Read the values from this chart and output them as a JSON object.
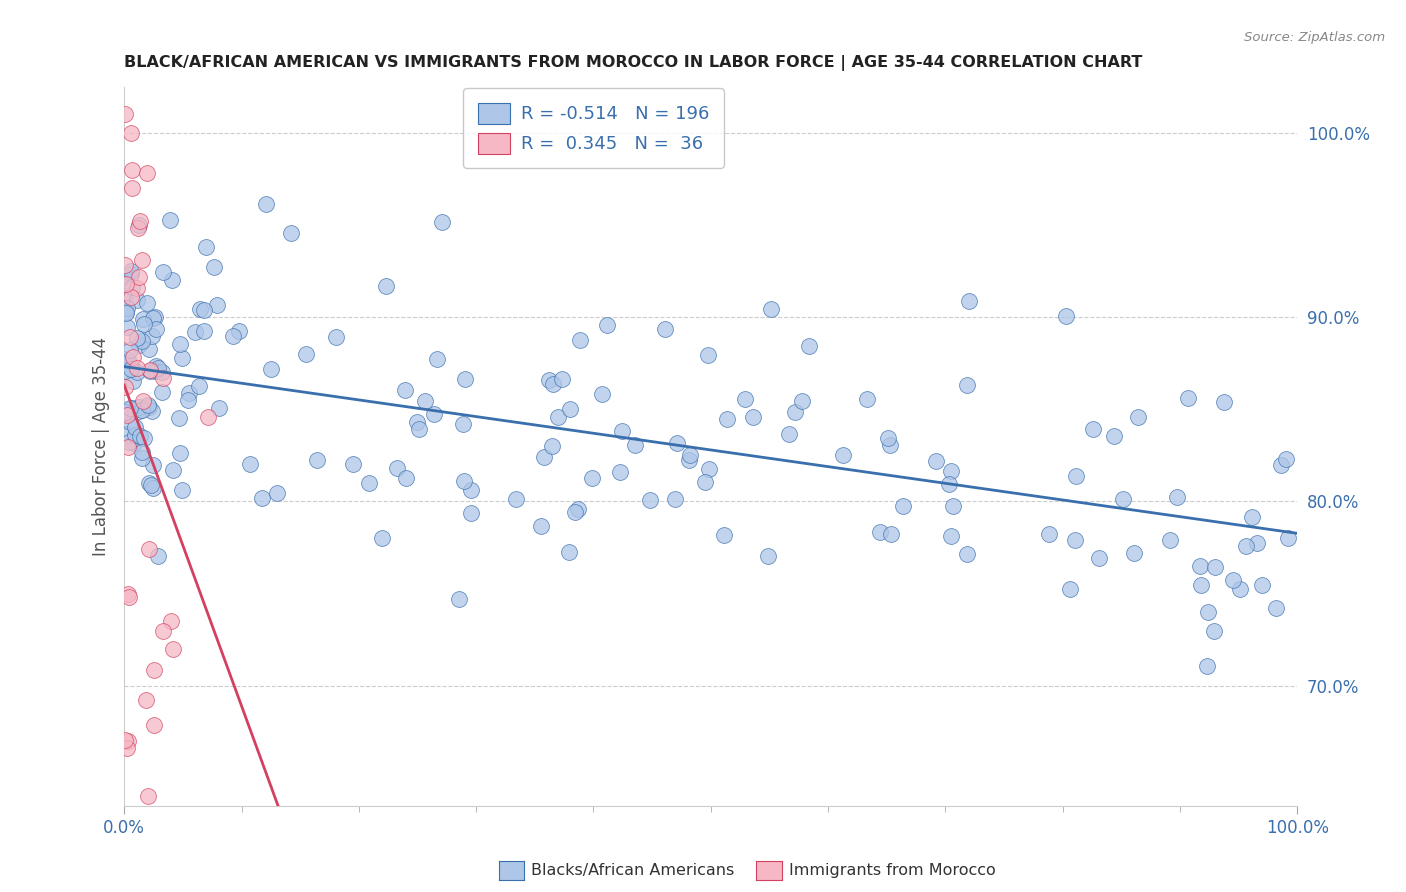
{
  "title": "BLACK/AFRICAN AMERICAN VS IMMIGRANTS FROM MOROCCO IN LABOR FORCE | AGE 35-44 CORRELATION CHART",
  "source": "Source: ZipAtlas.com",
  "ylabel": "In Labor Force | Age 35-44",
  "blue_R": -0.514,
  "blue_N": 196,
  "pink_R": 0.345,
  "pink_N": 36,
  "legend_label_blue": "Blacks/African Americans",
  "legend_label_pink": "Immigrants from Morocco",
  "blue_color": "#aec6e8",
  "pink_color": "#f5b8c4",
  "blue_line_color": "#3a6fad",
  "pink_line_color": "#d44060",
  "background_color": "#ffffff",
  "grid_color": "#cccccc",
  "axis_label_color": "#3a6fad",
  "title_color": "#222222",
  "xlim": [
    0.0,
    1.0
  ],
  "ylim": [
    0.635,
    1.025
  ]
}
